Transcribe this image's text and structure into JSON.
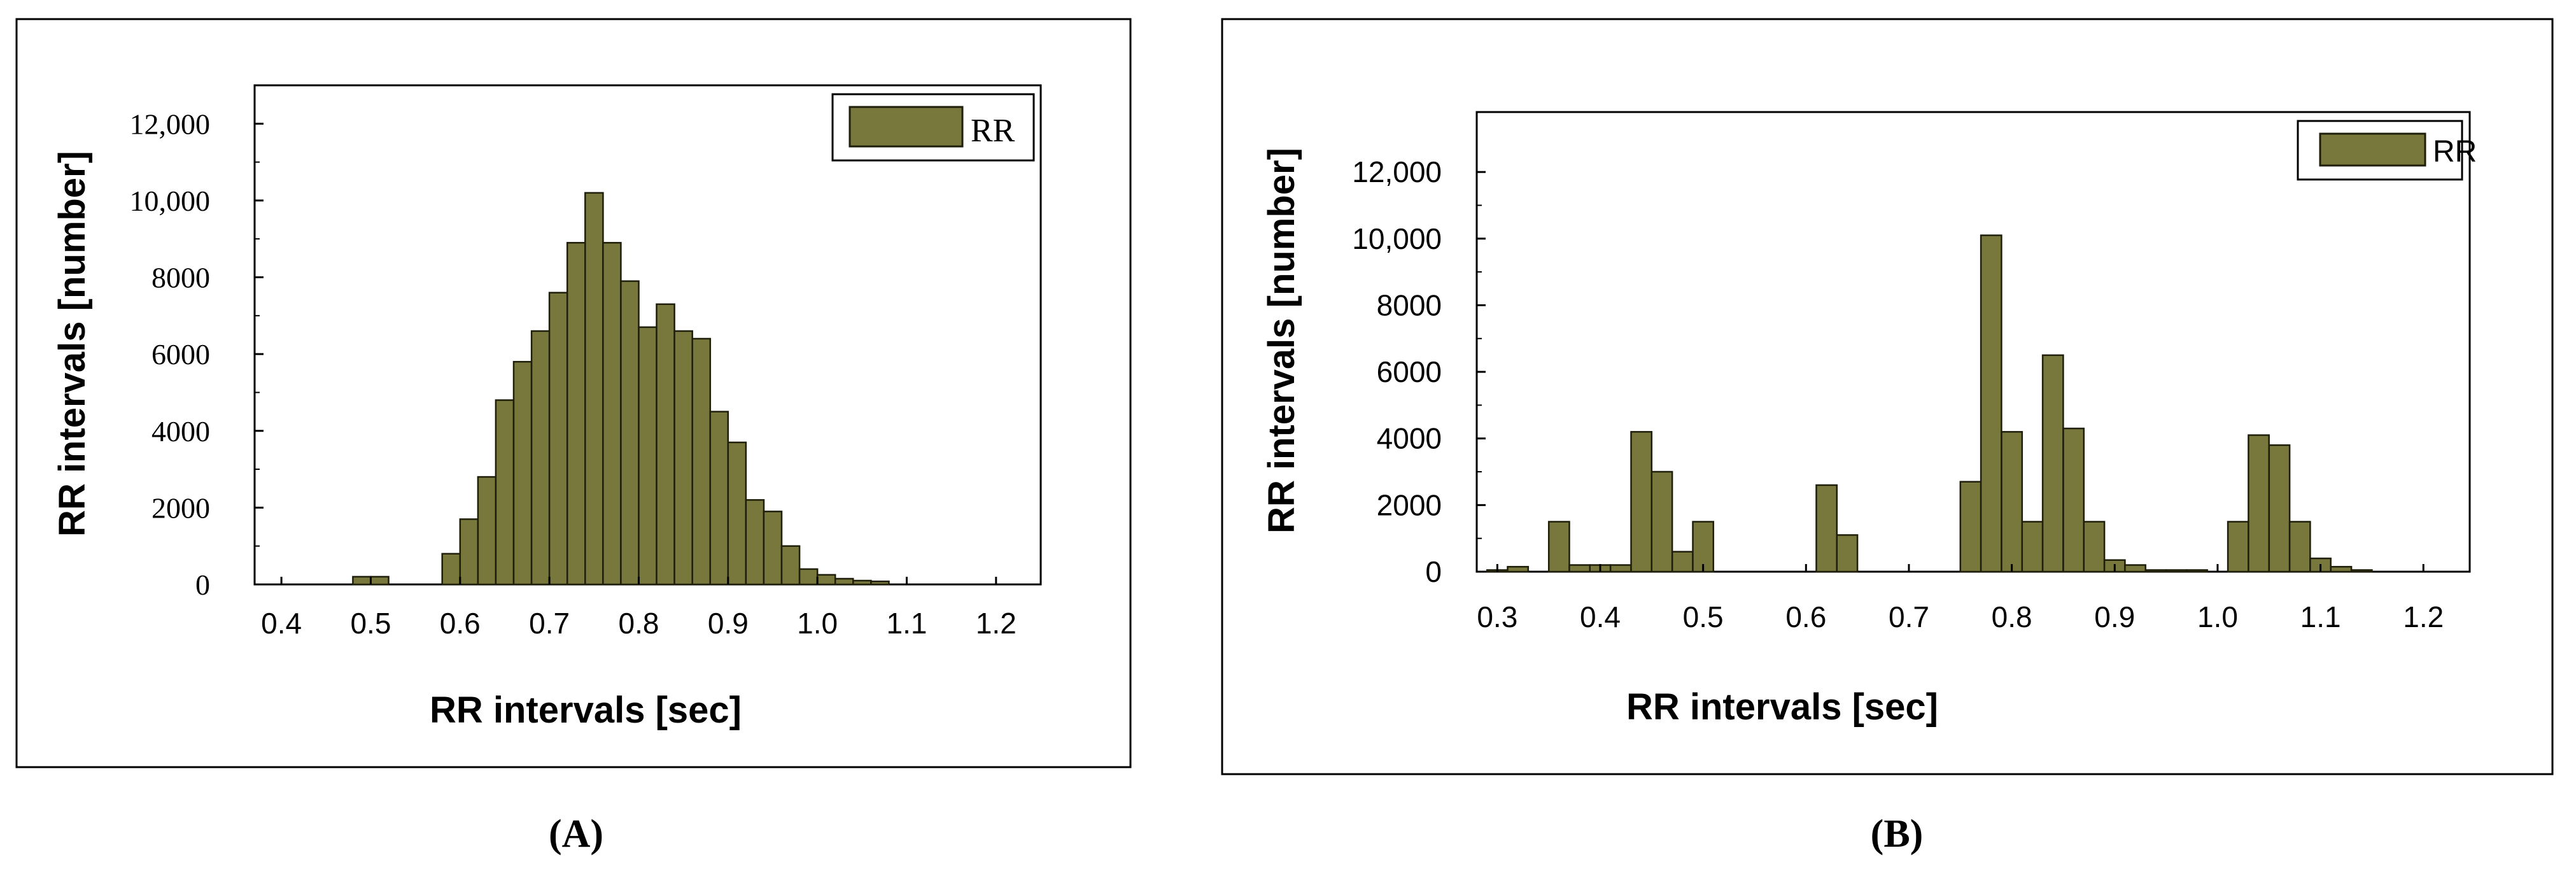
{
  "chart_data": [
    {
      "panel": "A",
      "type": "bar",
      "ylabel": "RR intervals [number]",
      "xlabel": "RR intervals [sec]",
      "caption": "(A)",
      "legend": {
        "label": "RR",
        "placement": "top-right"
      },
      "xlim": [
        0.37,
        1.25
      ],
      "ylim": [
        0,
        13000
      ],
      "xticks": [
        0.4,
        0.5,
        0.6,
        0.7,
        0.8,
        0.9,
        1.0,
        1.1,
        1.2
      ],
      "xtick_labels": [
        "0.4",
        "0.5",
        "0.6",
        "0.7",
        "0.8",
        "0.9",
        "1.0",
        "1.1",
        "1.2"
      ],
      "yticks": [
        0,
        2000,
        4000,
        6000,
        8000,
        10000,
        12000
      ],
      "ytick_labels": [
        "0",
        "2000",
        "4000",
        "6000",
        "8000",
        "10,000",
        "12,000"
      ],
      "bin_width": 0.02,
      "bins": [
        {
          "x": 0.49,
          "y": 200
        },
        {
          "x": 0.51,
          "y": 200
        },
        {
          "x": 0.59,
          "y": 800
        },
        {
          "x": 0.61,
          "y": 1700
        },
        {
          "x": 0.63,
          "y": 2800
        },
        {
          "x": 0.65,
          "y": 4800
        },
        {
          "x": 0.67,
          "y": 5800
        },
        {
          "x": 0.69,
          "y": 6600
        },
        {
          "x": 0.71,
          "y": 7600
        },
        {
          "x": 0.73,
          "y": 8900
        },
        {
          "x": 0.75,
          "y": 10200
        },
        {
          "x": 0.77,
          "y": 8900
        },
        {
          "x": 0.79,
          "y": 7900
        },
        {
          "x": 0.81,
          "y": 6700
        },
        {
          "x": 0.83,
          "y": 7300
        },
        {
          "x": 0.85,
          "y": 6600
        },
        {
          "x": 0.87,
          "y": 6400
        },
        {
          "x": 0.89,
          "y": 4500
        },
        {
          "x": 0.91,
          "y": 3700
        },
        {
          "x": 0.93,
          "y": 2200
        },
        {
          "x": 0.95,
          "y": 1900
        },
        {
          "x": 0.97,
          "y": 1000
        },
        {
          "x": 0.99,
          "y": 400
        },
        {
          "x": 1.01,
          "y": 250
        },
        {
          "x": 1.03,
          "y": 150
        },
        {
          "x": 1.05,
          "y": 100
        },
        {
          "x": 1.07,
          "y": 80
        }
      ],
      "colors": {
        "bar": "#78783c",
        "bar_edge": "#1e1e0a"
      }
    },
    {
      "panel": "B",
      "type": "bar",
      "ylabel": "RR intervals [number]",
      "xlabel": "RR intervals [sec]",
      "caption": "(B)",
      "legend": {
        "label": "RR",
        "placement": "top-right"
      },
      "xlim": [
        0.28,
        1.245
      ],
      "ylim": [
        0,
        13800
      ],
      "xticks": [
        0.3,
        0.4,
        0.5,
        0.6,
        0.7,
        0.8,
        0.9,
        1.0,
        1.1,
        1.2
      ],
      "xtick_labels": [
        "0.3",
        "0.4",
        "0.5",
        "0.6",
        "0.7",
        "0.8",
        "0.9",
        "1.0",
        "1.1",
        "1.2"
      ],
      "yticks": [
        0,
        2000,
        4000,
        6000,
        8000,
        10000,
        12000
      ],
      "ytick_labels": [
        "0",
        "2000",
        "4000",
        "6000",
        "8000",
        "10,000",
        "12,000"
      ],
      "bin_width": 0.02,
      "bins": [
        {
          "x": 0.3,
          "y": 50
        },
        {
          "x": 0.32,
          "y": 150
        },
        {
          "x": 0.36,
          "y": 1500
        },
        {
          "x": 0.38,
          "y": 200
        },
        {
          "x": 0.4,
          "y": 200
        },
        {
          "x": 0.42,
          "y": 200
        },
        {
          "x": 0.44,
          "y": 4200
        },
        {
          "x": 0.46,
          "y": 3000
        },
        {
          "x": 0.48,
          "y": 600
        },
        {
          "x": 0.5,
          "y": 1500
        },
        {
          "x": 0.62,
          "y": 2600
        },
        {
          "x": 0.64,
          "y": 1100
        },
        {
          "x": 0.76,
          "y": 2700
        },
        {
          "x": 0.78,
          "y": 10100
        },
        {
          "x": 0.8,
          "y": 4200
        },
        {
          "x": 0.82,
          "y": 1500
        },
        {
          "x": 0.84,
          "y": 6500
        },
        {
          "x": 0.86,
          "y": 4300
        },
        {
          "x": 0.88,
          "y": 1500
        },
        {
          "x": 0.9,
          "y": 350
        },
        {
          "x": 0.92,
          "y": 200
        },
        {
          "x": 0.94,
          "y": 50
        },
        {
          "x": 0.96,
          "y": 50
        },
        {
          "x": 0.98,
          "y": 50
        },
        {
          "x": 1.02,
          "y": 1500
        },
        {
          "x": 1.04,
          "y": 4100
        },
        {
          "x": 1.06,
          "y": 3800
        },
        {
          "x": 1.08,
          "y": 1500
        },
        {
          "x": 1.1,
          "y": 400
        },
        {
          "x": 1.12,
          "y": 150
        },
        {
          "x": 1.14,
          "y": 50
        }
      ],
      "colors": {
        "bar": "#78783c",
        "bar_edge": "#1e1e0a"
      }
    }
  ]
}
